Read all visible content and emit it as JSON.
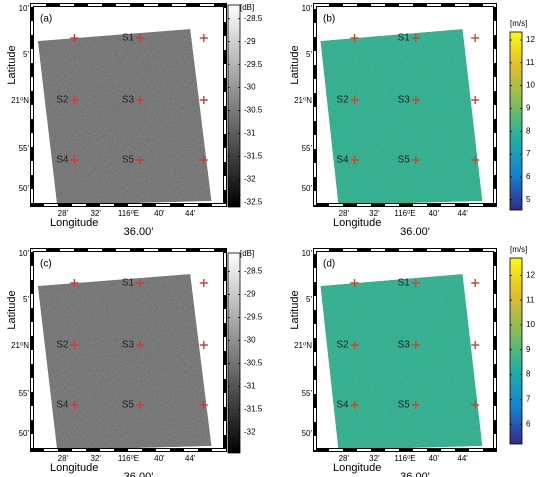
{
  "panels": [
    {
      "label": "(a)",
      "unit": "[dB]",
      "scale": "gray",
      "clim": [
        -28.2,
        -32.6
      ],
      "ticks": [
        -28.5,
        -29,
        -29.5,
        -30,
        -30.5,
        -31,
        -31.5,
        -32,
        -32.5
      ]
    },
    {
      "label": "(b)",
      "unit": "[m/s]",
      "scale": "parula",
      "clim": [
        12.35,
        4.55
      ],
      "ticks": [
        12,
        11,
        10,
        9,
        8,
        7,
        6,
        5
      ]
    },
    {
      "label": "(c)",
      "unit": "[dB]",
      "scale": "gray",
      "clim": [
        -28.1,
        -32.45
      ],
      "ticks": [
        -28.5,
        -29,
        -29.5,
        -30,
        -30.5,
        -31,
        -31.5,
        -32
      ]
    },
    {
      "label": "(d)",
      "unit": "[m/s]",
      "scale": "parula",
      "clim": [
        12.7,
        5.2
      ],
      "ticks": [
        12,
        11,
        10,
        9,
        8,
        7,
        6
      ]
    }
  ],
  "x_ticks": [
    "28'",
    "32'",
    "116⁰E",
    "40'",
    "44'"
  ],
  "x_center_sub": "36.00'",
  "y_ticks": [
    "10'",
    "5'",
    "21⁰N",
    "55'",
    "50'"
  ],
  "x_label": "Longitude",
  "y_label": "Latitude",
  "stations": [
    "S1",
    "S2",
    "S3",
    "S4",
    "S5"
  ]
}
